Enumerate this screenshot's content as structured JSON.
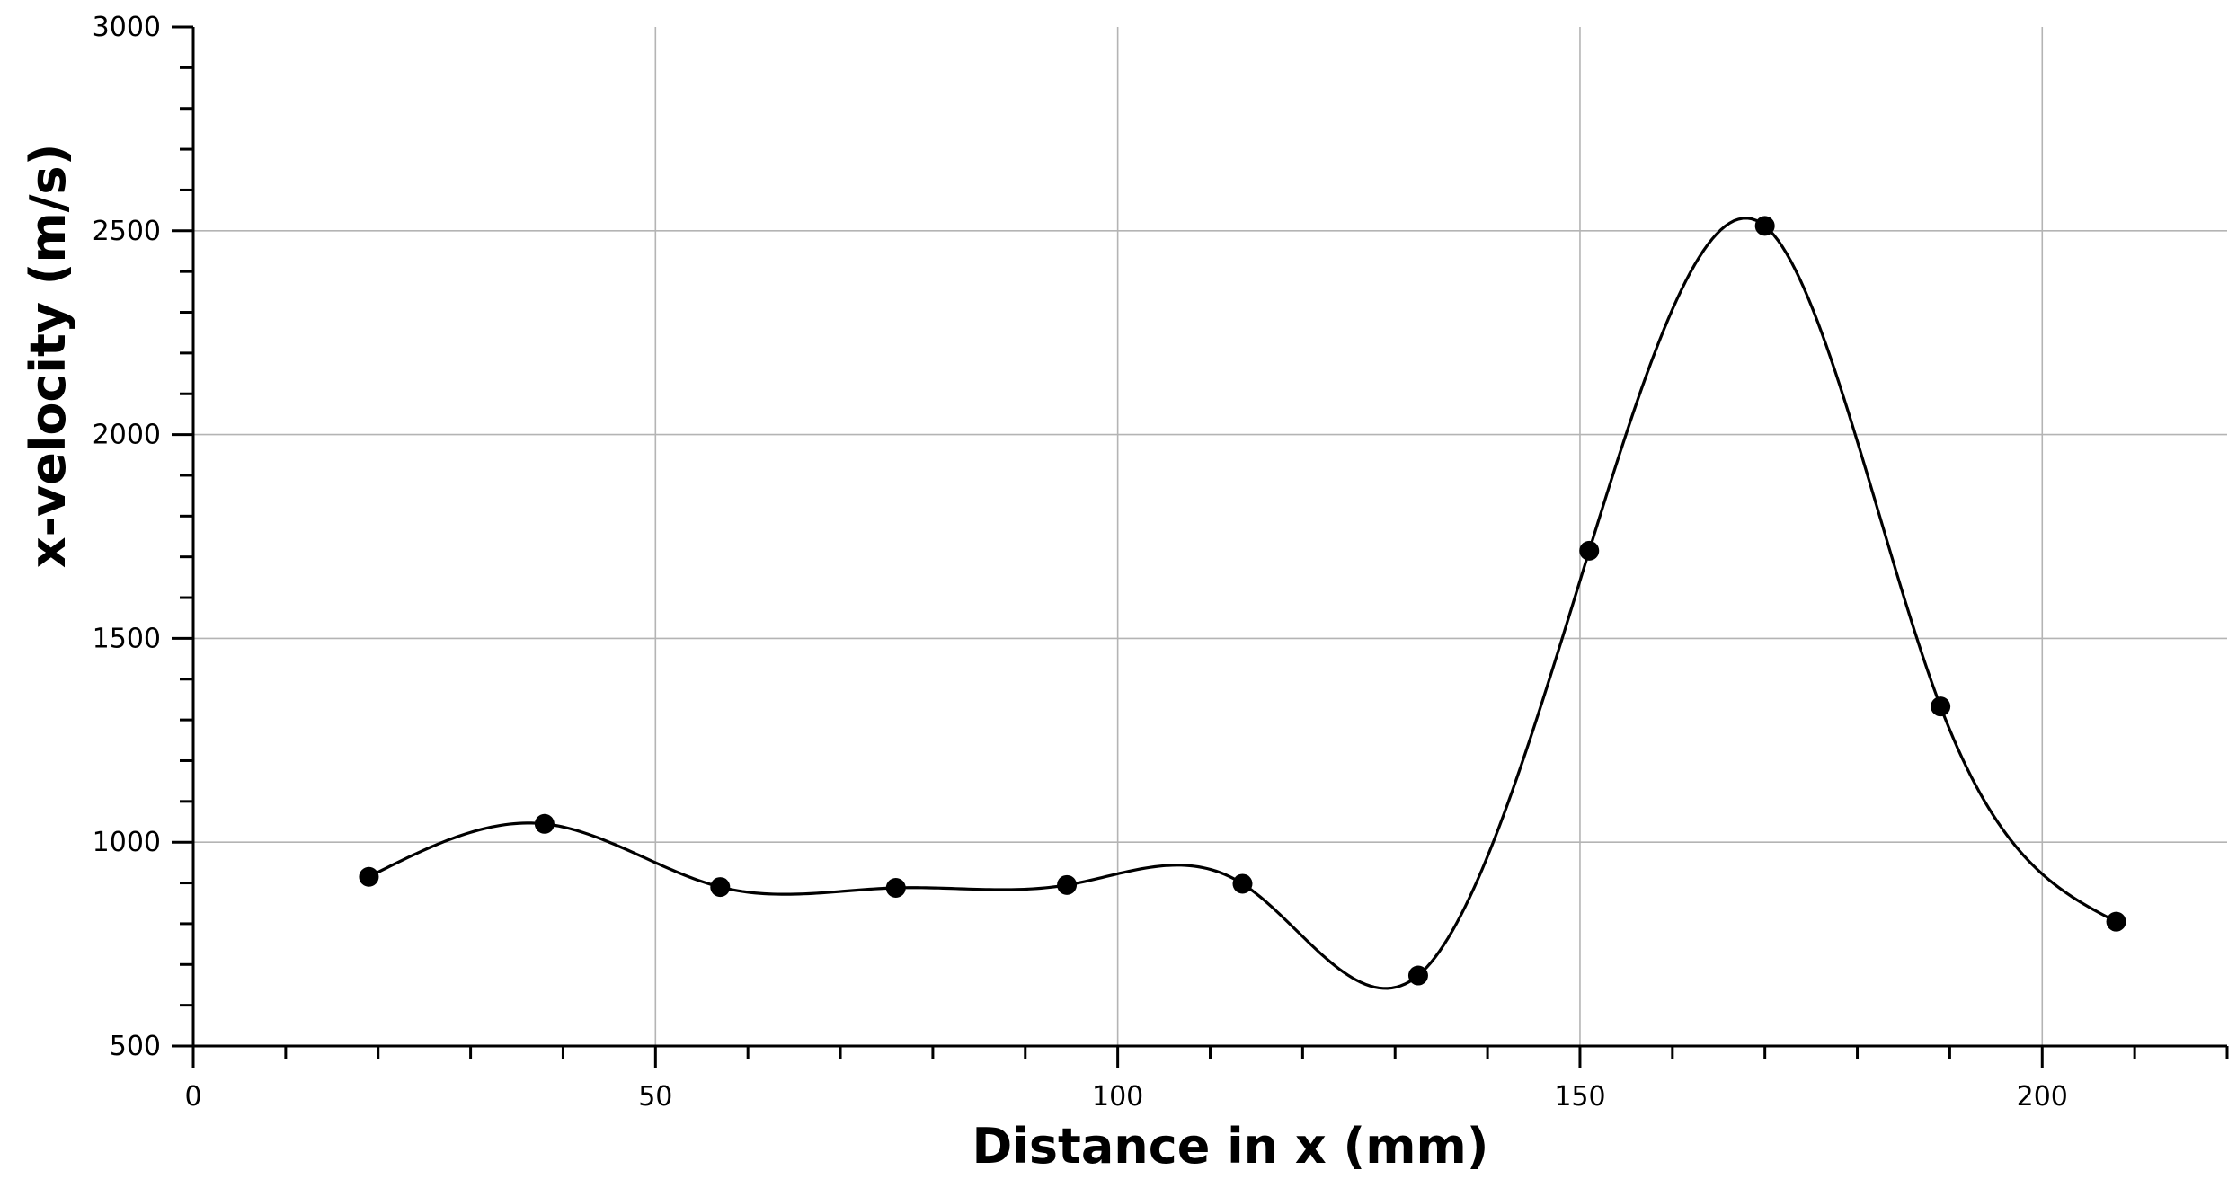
{
  "chart_data": {
    "type": "line",
    "title": "",
    "xlabel": "Distance in x (mm)",
    "ylabel": "x-velocity (m/s)",
    "xlim": [
      0,
      220
    ],
    "ylim": [
      500,
      3000
    ],
    "x_ticks": [
      0,
      50,
      100,
      150,
      200
    ],
    "x_tick_labels": [
      "0",
      "50",
      "100",
      "150",
      "200"
    ],
    "x_minor_step": 10,
    "y_ticks": [
      500,
      1000,
      1500,
      2000,
      2500,
      3000
    ],
    "y_tick_labels": [
      "500",
      "1000",
      "1500",
      "2000",
      "2500",
      "3000"
    ],
    "y_minor_step": 100,
    "grid": true,
    "series": [
      {
        "x": [
          19,
          38,
          57,
          76,
          94.5,
          113.5,
          132.5,
          151,
          170,
          189,
          208
        ],
        "y": [
          915,
          1045,
          890,
          888,
          895,
          898,
          673,
          1715,
          2512,
          1333,
          805
        ],
        "curve_color": "#000000",
        "marker_color": "#000000"
      }
    ]
  }
}
